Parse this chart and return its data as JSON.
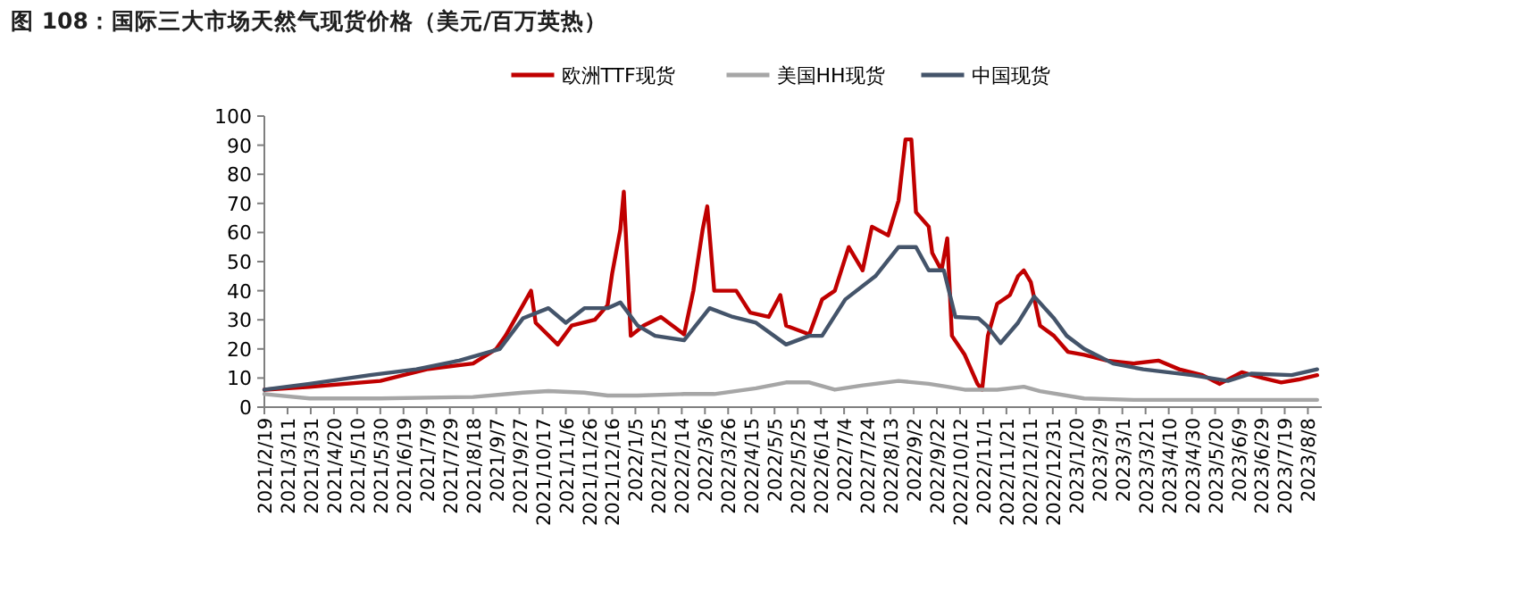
{
  "chart_data": {
    "type": "line",
    "title": "图 108：国际三大市场天然气现货价格（美元/百万英热）",
    "xlim": [
      "2021-02-19",
      "2023-08-20"
    ],
    "ylim": [
      0,
      100
    ],
    "yticks": [
      0,
      10,
      20,
      30,
      40,
      50,
      60,
      70,
      80,
      90,
      100
    ],
    "xticks": [
      {
        "value": "2021-02-19",
        "label": "2021/2/19"
      },
      {
        "value": "2021-03-11",
        "label": "2021/3/11"
      },
      {
        "value": "2021-03-31",
        "label": "2021/3/31"
      },
      {
        "value": "2021-04-20",
        "label": "2021/4/20"
      },
      {
        "value": "2021-05-10",
        "label": "2021/5/10"
      },
      {
        "value": "2021-05-30",
        "label": "2021/5/30"
      },
      {
        "value": "2021-06-19",
        "label": "2021/6/19"
      },
      {
        "value": "2021-07-09",
        "label": "2021/7/9"
      },
      {
        "value": "2021-07-29",
        "label": "2021/7/29"
      },
      {
        "value": "2021-08-18",
        "label": "2021/8/18"
      },
      {
        "value": "2021-09-07",
        "label": "2021/9/7"
      },
      {
        "value": "2021-09-27",
        "label": "2021/9/27"
      },
      {
        "value": "2021-10-17",
        "label": "2021/10/17"
      },
      {
        "value": "2021-11-06",
        "label": "2021/11/6"
      },
      {
        "value": "2021-11-26",
        "label": "2021/11/26"
      },
      {
        "value": "2021-12-16",
        "label": "2021/12/16"
      },
      {
        "value": "2022-01-05",
        "label": "2022/1/5"
      },
      {
        "value": "2022-01-25",
        "label": "2022/1/25"
      },
      {
        "value": "2022-02-14",
        "label": "2022/2/14"
      },
      {
        "value": "2022-03-06",
        "label": "2022/3/6"
      },
      {
        "value": "2022-03-26",
        "label": "2022/3/26"
      },
      {
        "value": "2022-04-15",
        "label": "2022/4/15"
      },
      {
        "value": "2022-05-05",
        "label": "2022/5/5"
      },
      {
        "value": "2022-05-25",
        "label": "2022/5/25"
      },
      {
        "value": "2022-06-14",
        "label": "2022/6/14"
      },
      {
        "value": "2022-07-04",
        "label": "2022/7/4"
      },
      {
        "value": "2022-07-24",
        "label": "2022/7/24"
      },
      {
        "value": "2022-08-13",
        "label": "2022/8/13"
      },
      {
        "value": "2022-09-02",
        "label": "2022/9/2"
      },
      {
        "value": "2022-09-22",
        "label": "2022/9/22"
      },
      {
        "value": "2022-10-12",
        "label": "2022/10/12"
      },
      {
        "value": "2022-11-01",
        "label": "2022/11/1"
      },
      {
        "value": "2022-11-21",
        "label": "2022/11/21"
      },
      {
        "value": "2022-12-11",
        "label": "2022/12/11"
      },
      {
        "value": "2022-12-31",
        "label": "2022/12/31"
      },
      {
        "value": "2023-01-20",
        "label": "2023/1/20"
      },
      {
        "value": "2023-02-09",
        "label": "2023/2/9"
      },
      {
        "value": "2023-03-01",
        "label": "2023/3/1"
      },
      {
        "value": "2023-03-21",
        "label": "2023/3/21"
      },
      {
        "value": "2023-04-10",
        "label": "2023/4/10"
      },
      {
        "value": "2023-04-30",
        "label": "2023/4/30"
      },
      {
        "value": "2023-05-20",
        "label": "2023/5/20"
      },
      {
        "value": "2023-06-09",
        "label": "2023/6/9"
      },
      {
        "value": "2023-06-29",
        "label": "2023/6/29"
      },
      {
        "value": "2023-07-19",
        "label": "2023/7/19"
      },
      {
        "value": "2023-08-08",
        "label": "2023/8/8"
      }
    ],
    "legend": "top",
    "marker": "none",
    "line_style": "solid",
    "series": [
      {
        "name": "欧洲TTF现货",
        "color": "#c00000",
        "x": [
          "2021-02-19",
          "2021-03-30",
          "2021-05-30",
          "2021-07-09",
          "2021-08-18",
          "2021-09-07",
          "2021-09-15",
          "2021-10-07",
          "2021-10-11",
          "2021-10-30",
          "2021-11-11",
          "2021-12-01",
          "2021-12-12",
          "2021-12-16",
          "2021-12-23",
          "2021-12-26",
          "2022-01-01",
          "2022-01-12",
          "2022-01-27",
          "2022-02-16",
          "2022-02-24",
          "2022-03-04",
          "2022-03-08",
          "2022-03-14",
          "2022-04-02",
          "2022-04-14",
          "2022-04-30",
          "2022-05-10",
          "2022-05-15",
          "2022-06-04",
          "2022-06-15",
          "2022-06-26",
          "2022-07-08",
          "2022-07-20",
          "2022-07-28",
          "2022-08-11",
          "2022-08-20",
          "2022-08-26",
          "2022-08-31",
          "2022-09-04",
          "2022-09-15",
          "2022-09-18",
          "2022-09-26",
          "2022-10-01",
          "2022-10-05",
          "2022-10-16",
          "2022-10-27",
          "2022-10-31",
          "2022-11-05",
          "2022-11-13",
          "2022-11-24",
          "2022-12-01",
          "2022-12-06",
          "2022-12-12",
          "2022-12-20",
          "2023-01-01",
          "2023-01-13",
          "2023-01-27",
          "2023-02-16",
          "2023-03-11",
          "2023-04-01",
          "2023-04-19",
          "2023-05-09",
          "2023-05-24",
          "2023-06-12",
          "2023-06-30",
          "2023-07-16",
          "2023-07-31",
          "2023-08-16"
        ],
        "values": [
          6,
          7,
          9,
          13,
          15,
          20,
          24.5,
          40,
          29,
          21.5,
          28,
          30,
          35,
          46,
          61,
          74,
          24.5,
          28,
          31,
          25,
          40,
          61,
          69,
          40,
          40,
          32.5,
          31,
          38.5,
          28,
          25,
          37,
          40,
          55,
          47,
          62,
          59,
          71,
          92,
          92,
          67,
          62,
          53,
          47,
          58,
          24.5,
          18,
          8,
          6,
          24.5,
          35.5,
          38.5,
          45,
          47,
          43,
          28,
          24.5,
          19,
          18,
          16,
          15,
          16,
          13,
          11,
          8,
          12,
          10,
          8.5,
          9.5,
          11
        ]
      },
      {
        "name": "美国HH现货",
        "color": "#a6a6a6",
        "x": [
          "2021-02-19",
          "2021-03-30",
          "2021-05-30",
          "2021-08-18",
          "2021-09-30",
          "2021-10-22",
          "2021-11-22",
          "2021-12-12",
          "2022-01-07",
          "2022-02-16",
          "2022-03-14",
          "2022-04-19",
          "2022-05-15",
          "2022-06-04",
          "2022-06-26",
          "2022-07-20",
          "2022-08-20",
          "2022-09-15",
          "2022-10-01",
          "2022-10-16",
          "2022-11-13",
          "2022-12-06",
          "2022-12-20",
          "2023-01-27",
          "2023-03-11",
          "2023-05-09",
          "2023-06-20",
          "2023-08-16"
        ],
        "values": [
          4.5,
          3,
          3,
          3.5,
          5,
          5.5,
          5,
          4,
          4,
          4.5,
          4.5,
          6.5,
          8.5,
          8.5,
          6,
          7.5,
          9,
          8,
          7,
          6,
          6,
          7,
          5.5,
          3,
          2.5,
          2.5,
          2.5,
          2.5
        ]
      },
      {
        "name": "中国现货",
        "color": "#44546a",
        "x": [
          "2021-02-19",
          "2021-03-30",
          "2021-05-21",
          "2021-06-30",
          "2021-08-06",
          "2021-09-10",
          "2021-09-30",
          "2021-10-22",
          "2021-11-06",
          "2021-11-22",
          "2021-12-12",
          "2021-12-23",
          "2022-01-07",
          "2022-01-22",
          "2022-02-16",
          "2022-03-10",
          "2022-03-30",
          "2022-04-19",
          "2022-05-15",
          "2022-06-04",
          "2022-06-15",
          "2022-07-05",
          "2022-07-31",
          "2022-08-20",
          "2022-09-04",
          "2022-09-15",
          "2022-09-28",
          "2022-10-08",
          "2022-10-28",
          "2022-11-04",
          "2022-11-16",
          "2022-12-01",
          "2022-12-15",
          "2023-01-01",
          "2023-01-12",
          "2023-01-27",
          "2023-02-21",
          "2023-03-19",
          "2023-04-30",
          "2023-05-31",
          "2023-06-20",
          "2023-07-25",
          "2023-08-16"
        ],
        "values": [
          6,
          8,
          11,
          13,
          16,
          20,
          30.5,
          34,
          29,
          34,
          34,
          36,
          28,
          24.5,
          23,
          34,
          31,
          29,
          21.5,
          24.5,
          24.5,
          37,
          45,
          55,
          55,
          47,
          47,
          31,
          30.5,
          28,
          22,
          29,
          38,
          30.5,
          24.5,
          20,
          15,
          13,
          11,
          9,
          11.5,
          11,
          13
        ]
      }
    ]
  }
}
